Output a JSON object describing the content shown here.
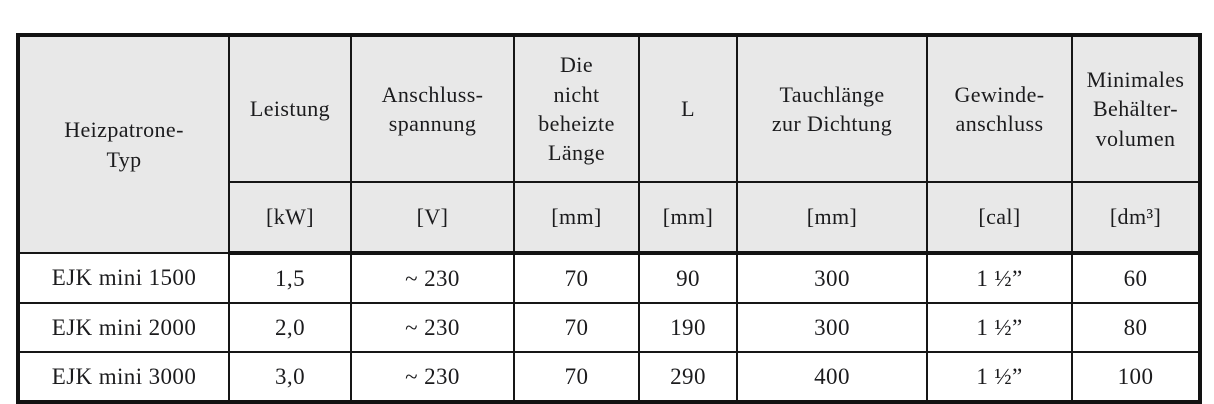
{
  "colors": {
    "header_bg": "#e8e8e8",
    "body_bg": "#ffffff",
    "border": "#121212",
    "text": "#1b1b1d"
  },
  "table": {
    "header": {
      "type_label": "Heizpatrone-\nTyp",
      "columns": [
        {
          "label": "Leistung",
          "unit": "[kW]"
        },
        {
          "label": "Anschluss-\nspannung",
          "unit": "[V]"
        },
        {
          "label": "Die\nnicht\nbeheizte\nLänge",
          "unit": "[mm]"
        },
        {
          "label": "L",
          "unit": "[mm]"
        },
        {
          "label": "Tauchlänge\nzur Dichtung",
          "unit": "[mm]"
        },
        {
          "label": "Gewinde-\nanschluss",
          "unit": "[cal]"
        },
        {
          "label": "Minimales\nBehälter-\nvolumen",
          "unit": "[dm³]"
        }
      ]
    },
    "rows": [
      {
        "cells": [
          "EJK mini 1500",
          "1,5",
          "~ 230",
          "70",
          "90",
          "300",
          "1 ½”",
          "60"
        ]
      },
      {
        "cells": [
          "EJK mini 2000",
          "2,0",
          "~ 230",
          "70",
          "190",
          "300",
          "1 ½”",
          "80"
        ]
      },
      {
        "cells": [
          "EJK mini 3000",
          "3,0",
          "~ 230",
          "70",
          "290",
          "400",
          "1 ½”",
          "100"
        ]
      }
    ]
  }
}
